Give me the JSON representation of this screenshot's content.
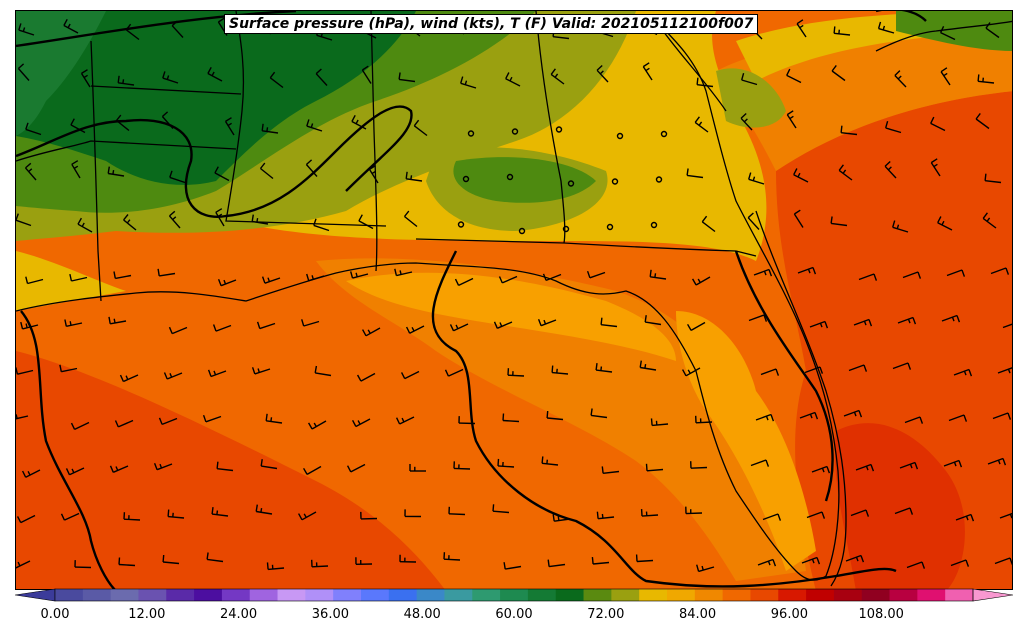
{
  "title": "Surface pressure (hPa), wind (kts), T (F) Valid: 202105112100f007",
  "colorbar": {
    "min": 0,
    "max": 120,
    "step": 4,
    "tick_labels": [
      "0.00",
      "12.00",
      "24.00",
      "36.00",
      "48.00",
      "60.00",
      "72.00",
      "84.00",
      "96.00",
      "108.00"
    ],
    "tick_values": [
      0,
      12,
      24,
      36,
      48,
      60,
      72,
      84,
      96,
      108
    ],
    "colors": [
      "#3b3b9a",
      "#4a4a9e",
      "#5a5aa6",
      "#6b6bae",
      "#6a52b0",
      "#5a2aa8",
      "#4c0ea0",
      "#7438c4",
      "#a064e0",
      "#c898f4",
      "#b090f8",
      "#8080fc",
      "#5a78fc",
      "#3a70f0",
      "#3a88c8",
      "#3a9aa0",
      "#2e9a70",
      "#1e8a50",
      "#147a34",
      "#0a6a1c",
      "#5a8a10",
      "#9aa010",
      "#e8b800",
      "#f0a800",
      "#f08800",
      "#f06800",
      "#e84800",
      "#d81800",
      "#c00000",
      "#a80010",
      "#900020",
      "#b80040",
      "#e01070",
      "#f060b0",
      "#f898d0"
    ]
  },
  "map": {
    "fill_colors": {
      "t_52_56": "#1a7a30",
      "t_56_60": "#0a6a1c",
      "t_60_64": "#4e8a10",
      "t_64_68": "#9aa010",
      "t_68_72": "#e8b800",
      "t_72_76": "#f8a000",
      "t_76_80": "#f08000",
      "t_80_84": "#f06800",
      "t_84_88": "#e84800",
      "t_88_92": "#e03000"
    },
    "isobar_color": "#000000",
    "barb_color": "#000000"
  }
}
